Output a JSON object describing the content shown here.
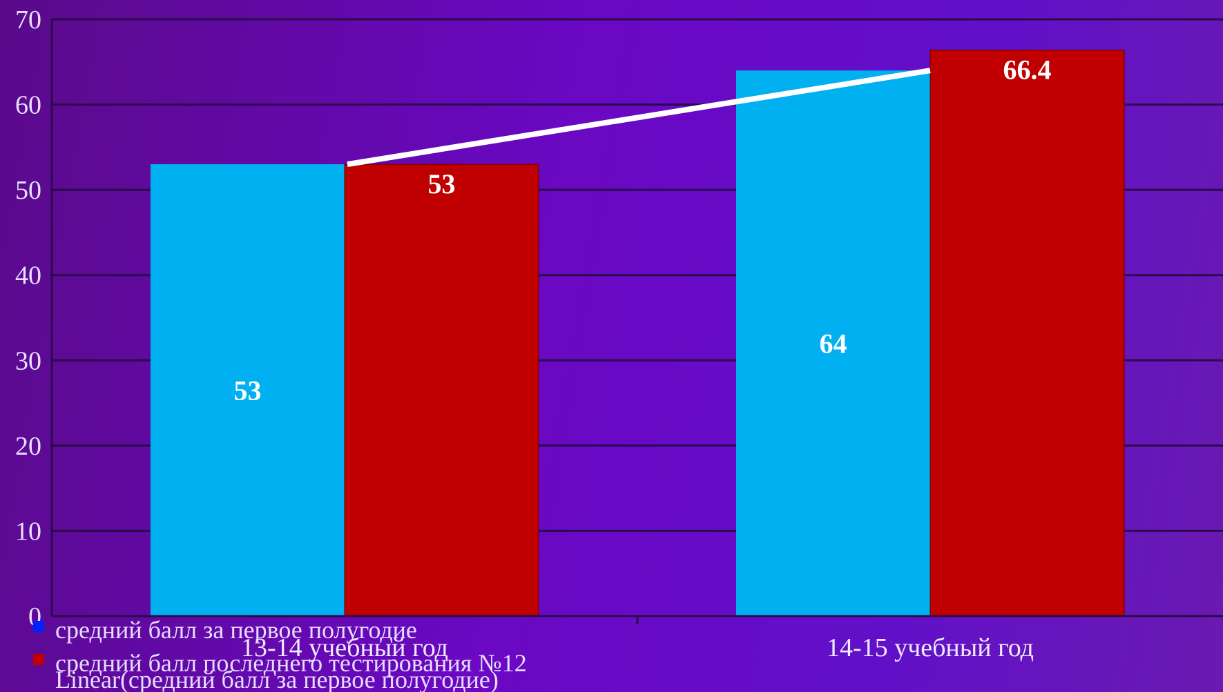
{
  "chart_data": {
    "type": "bar",
    "categories": [
      "13-14 учебный год",
      "14-15 учебный год"
    ],
    "series": [
      {
        "name": "средний балл за первое полугодие",
        "values": [
          53,
          64
        ],
        "color": "#00b0f0"
      },
      {
        "name": "средний балл последнего тестирования №12",
        "values": [
          53,
          66.4
        ],
        "color": "#c00000"
      }
    ],
    "trendline": {
      "label": "Linear(средний балл за первое полугодие)",
      "values": [
        53,
        64
      ],
      "color": "#ffffff"
    },
    "yticks": [
      0,
      10,
      20,
      30,
      40,
      50,
      60,
      70
    ],
    "ylim": [
      0,
      70
    ],
    "grid": true,
    "legend_position": "bottom-left",
    "title": "",
    "xlabel": "",
    "ylabel": ""
  }
}
